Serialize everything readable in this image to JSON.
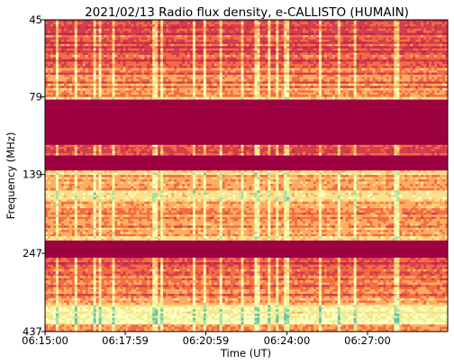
{
  "chart_data": {
    "type": "heatmap",
    "title": "2021/02/13  Radio flux density, e-CALLISTO (HUMAIN)",
    "xlabel": "Time (UT)",
    "ylabel": "Frequency (MHz)",
    "x_ticks": [
      "06:15:00",
      "06:17:59",
      "06:20:59",
      "06:24:00",
      "06:27:00"
    ],
    "y_ticks": [
      "45",
      "79",
      "139",
      "247",
      "437"
    ],
    "y_scale": "log",
    "ylim": [
      45,
      437
    ],
    "colormap": [
      "#9e0142",
      "#c2294a",
      "#d53e4f",
      "#f46d43",
      "#fdae61",
      "#fee08b",
      "#ffffbf",
      "#e6f598",
      "#abdda4",
      "#66c2a5"
    ],
    "frequency_bands": [
      {
        "freq_range": [
          45,
          64
        ],
        "level": "medium"
      },
      {
        "freq_range": [
          64,
          79
        ],
        "level": "medium-high"
      },
      {
        "freq_range": [
          79,
          80.5
        ],
        "level": "high"
      },
      {
        "freq_range": [
          80.5,
          112
        ],
        "level": "background"
      },
      {
        "freq_range": [
          112,
          121
        ],
        "level": "medium"
      },
      {
        "freq_range": [
          121,
          135
        ],
        "level": "background"
      },
      {
        "freq_range": [
          135,
          175
        ],
        "level": "high"
      },
      {
        "freq_range": [
          175,
          205
        ],
        "level": "medium-high"
      },
      {
        "freq_range": [
          205,
          225
        ],
        "level": "high"
      },
      {
        "freq_range": [
          225,
          255
        ],
        "level": "background"
      },
      {
        "freq_range": [
          255,
          282
        ],
        "level": "medium"
      },
      {
        "freq_range": [
          282,
          360
        ],
        "level": "medium-high"
      },
      {
        "freq_range": [
          360,
          415
        ],
        "level": "very-high"
      },
      {
        "freq_range": [
          415,
          437
        ],
        "level": "medium-high"
      }
    ],
    "grid": false,
    "legend": "none"
  },
  "colors": {
    "background": "#9e0142",
    "axis": "#000000"
  }
}
